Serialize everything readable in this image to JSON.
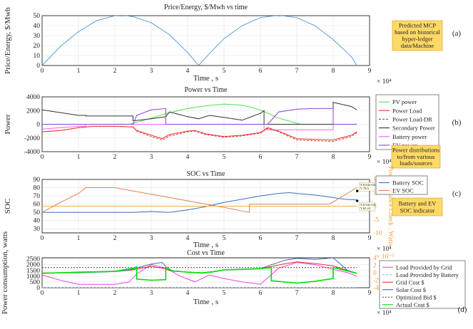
{
  "chart_data": [
    {
      "type": "line",
      "id": "a",
      "title": "Price/Energy, $/Mwh vs time",
      "xlabel": "Time , s",
      "ylabel": "Price/Energy, $/Mwh",
      "x_exponent": "× 10⁴",
      "xlim": [
        0,
        9
      ],
      "ylim": [
        0,
        50
      ],
      "xticks": [
        "0",
        "1",
        "2",
        "3",
        "4",
        "5",
        "6",
        "7",
        "8",
        "9"
      ],
      "yticks": [
        "0",
        "10",
        "20",
        "30",
        "40",
        "50"
      ],
      "grid": true,
      "series": [
        {
          "color": "#5b9bd5",
          "x": [
            0,
            0.5,
            1,
            1.5,
            2,
            2.2,
            2.5,
            3,
            3.5,
            4,
            4.3,
            4.6,
            5,
            5.5,
            6,
            6.5,
            7,
            7.5,
            8,
            8.5,
            8.65
          ],
          "values": [
            0,
            19,
            34,
            45,
            50,
            50.5,
            49,
            43,
            31,
            13,
            0,
            12,
            27,
            40,
            48,
            50.5,
            48,
            40,
            26,
            9,
            0
          ]
        }
      ],
      "annotation": {
        "text": [
          "Predicted MCP",
          "based on historical",
          "hyper-ledger",
          "data/Machine"
        ],
        "label": "(a)"
      }
    },
    {
      "type": "line",
      "id": "b",
      "title": "Power vs Time",
      "xlabel": "",
      "ylabel": "Power",
      "x_exponent": "× 10⁴",
      "xlim": [
        0,
        9
      ],
      "ylim": [
        -4000,
        4000
      ],
      "xticks": [
        "0",
        "1",
        "2",
        "3",
        "4",
        "5",
        "6",
        "7",
        "8",
        "9"
      ],
      "yticks": [
        "4000",
        "2000",
        "0",
        "-2000",
        "-4000"
      ],
      "grid": true,
      "legend": "right",
      "series": [
        {
          "name": "PV power",
          "color": "#55dd55",
          "dash": "",
          "x": [
            2.4,
            3,
            3.5,
            4,
            4.5,
            5,
            5.5,
            6,
            6.5,
            7.1
          ],
          "values": [
            0,
            900,
            1700,
            2300,
            2700,
            2950,
            2800,
            2100,
            900,
            0
          ]
        },
        {
          "name": "Power Load",
          "color": "#e8332b",
          "dash": "",
          "x": [
            0,
            0.5,
            1,
            1.4,
            2,
            2.5,
            2.6,
            3,
            3.3,
            3.5,
            4,
            4.2,
            4.5,
            5,
            5.5,
            6,
            6.2,
            6.5,
            7,
            7.5,
            8,
            8.5,
            8.65
          ],
          "values": [
            -1100,
            -900,
            -500,
            -300,
            -300,
            -400,
            -900,
            -1600,
            -2100,
            -1500,
            -1000,
            -900,
            -1400,
            -1800,
            -1600,
            -1200,
            -500,
            -1000,
            -2100,
            -2200,
            -2300,
            -1600,
            -1100
          ]
        },
        {
          "name": "Power Load-DR",
          "color": "#e8332b",
          "dash": "3,2",
          "x": [
            0,
            0.5,
            1,
            1.4,
            2,
            2.5,
            2.6,
            3,
            3.3,
            3.5,
            4,
            4.2,
            4.5,
            5,
            5.5,
            6,
            6.2,
            6.5,
            7,
            7.5,
            8,
            8.5,
            8.65
          ],
          "values": [
            -1100,
            -900,
            -500,
            -300,
            -300,
            -400,
            -1000,
            -1800,
            -2300,
            -1700,
            -1100,
            -1000,
            -1500,
            -1900,
            -1700,
            -1300,
            -600,
            -1100,
            -2300,
            -2400,
            -2500,
            -1800,
            -1200
          ]
        },
        {
          "name": "Secondary Power",
          "color": "#333333",
          "dash": "",
          "x": [
            0,
            0.5,
            1,
            1.2,
            1.2,
            2.5,
            2.5,
            3,
            3.4,
            3.5,
            4,
            4.3,
            4.6,
            5,
            5.5,
            6,
            6.1,
            6.1,
            6.5,
            7,
            7.5,
            8,
            8,
            8.5,
            8.65
          ],
          "values": [
            2100,
            1700,
            1300,
            1300,
            1200,
            1200,
            500,
            800,
            1100,
            1800,
            1100,
            800,
            1300,
            1000,
            600,
            1600,
            2000,
            0,
            0,
            0,
            0,
            0,
            3200,
            2600,
            2100
          ]
        },
        {
          "name": "Battery power",
          "color": "#ee66ee",
          "dash": "",
          "x": [
            0,
            0.5,
            1,
            1.2,
            1.2,
            6.1,
            6.1,
            8,
            8,
            8.65
          ],
          "values": [
            -700,
            -500,
            -300,
            -300,
            0,
            0,
            -800,
            -800,
            0,
            0
          ]
        },
        {
          "name": "EV power",
          "color": "#8844cc",
          "dash": "",
          "x": [
            0,
            2.5,
            2.6,
            3,
            3.4,
            3.4,
            6.2,
            6.5,
            7,
            7.5,
            8,
            8,
            8.65
          ],
          "values": [
            0,
            0,
            1300,
            2100,
            2300,
            0,
            0,
            1800,
            2200,
            2300,
            2300,
            0,
            0
          ]
        }
      ],
      "annotation": {
        "text": [
          "Power distributions",
          "to/from various",
          "loads/sources"
        ],
        "label": "(b)"
      }
    },
    {
      "type": "line",
      "id": "c",
      "title": "SOC vs Time",
      "xlabel": "Time , s",
      "ylabel": "SOC",
      "y2label": "Power Balance Check , Watts",
      "x_exponent": "× 10⁴",
      "xlim": [
        0,
        9
      ],
      "ylim": [
        25,
        90
      ],
      "y2lim": [
        -10,
        10
      ],
      "xticks": [
        "0",
        "1",
        "2",
        "3",
        "4",
        "5",
        "6",
        "7",
        "8",
        "9"
      ],
      "yticks": [
        "90",
        "80",
        "70",
        "60",
        "50",
        "40",
        "30"
      ],
      "y2ticks": [
        "10",
        "5",
        "0",
        "-5",
        "-10"
      ],
      "grid": true,
      "legend": "right",
      "series": [
        {
          "name": "Battery SOC",
          "color": "#3b6fb6",
          "x": [
            0,
            0.5,
            1,
            1.5,
            2,
            2.5,
            3,
            3.5,
            4,
            4.5,
            5,
            5.5,
            6,
            6.5,
            6.8,
            7,
            7.5,
            8,
            8.3,
            8.65
          ],
          "values": [
            50,
            50,
            50,
            50,
            50,
            50,
            51,
            50,
            53,
            57,
            62,
            66,
            70,
            73,
            74,
            73,
            71,
            68,
            66,
            65
          ]
        },
        {
          "name": "EV SOC",
          "color": "#e08050",
          "x": [
            0,
            0.5,
            1,
            1.2,
            2,
            2.5,
            3,
            3.5,
            4,
            4.5,
            5,
            5.7,
            5.7,
            6,
            7,
            7.9,
            8.65
          ],
          "values": [
            50,
            62,
            73,
            80,
            80,
            76,
            72,
            68,
            64,
            60,
            56,
            50,
            60,
            60,
            60,
            60,
            80
          ]
        },
        {
          "name": "",
          "color": "#f0b040",
          "axis": "right",
          "x": [
            0,
            8.65
          ],
          "values": [
            0,
            0
          ]
        }
      ],
      "datatips": [
        {
          "x": 8.7,
          "y": 76,
          "lines": [
            "X 8.64e+04",
            "Y 79.9"
          ]
        },
        {
          "x": 8.7,
          "y": 64,
          "lines": [
            "X 8.64e+04",
            "Y 65.24"
          ]
        }
      ],
      "annotation": {
        "text": [
          "Battery and EV",
          "SOC indicator"
        ],
        "label": "(c)"
      }
    },
    {
      "type": "line",
      "id": "d",
      "title": "Cost vs Time",
      "xlabel": "Time , s",
      "ylabel": "Power consumption,  watts",
      "y2label": "Cost $",
      "x_exponent": "× 10⁴",
      "y2_exponent": "× 10⁻³",
      "xlim": [
        0,
        9
      ],
      "ylim": [
        0,
        2600
      ],
      "y2lim": [
        -4,
        4
      ],
      "xticks": [
        "0",
        "1",
        "2",
        "3",
        "4",
        "5",
        "6",
        "7",
        "8",
        "9"
      ],
      "yticks": [
        "2500",
        "2000",
        "1500",
        "1000",
        "500",
        "0"
      ],
      "y2ticks": [
        "4",
        "2",
        "0",
        "-2",
        "-4"
      ],
      "grid": true,
      "legend": "right",
      "series": [
        {
          "name": "Load Provided by Grid",
          "color": "#ee44ee",
          "dash": "",
          "x": [
            0,
            0.5,
            1,
            1.5,
            2,
            2.4,
            2.6,
            3,
            3.4,
            3.8,
            4.2,
            4.6,
            5,
            5.5,
            6,
            6.5,
            7,
            7.5,
            8,
            8.4,
            8.65
          ],
          "values": [
            1100,
            650,
            300,
            300,
            300,
            500,
            1200,
            2000,
            1700,
            1000,
            500,
            1100,
            800,
            500,
            300,
            1700,
            2200,
            2000,
            1600,
            1300,
            1000
          ]
        },
        {
          "name": "Load Provided by Battery",
          "color": "#7fbfff",
          "dash": "3,2",
          "x": [
            0,
            8.65
          ],
          "values": [
            0,
            0
          ]
        },
        {
          "name": "Grid Cost $",
          "color": "#e8332b",
          "dash": "",
          "x": [
            0,
            0.5,
            1,
            1.5,
            2,
            2.5,
            2.8,
            3,
            3.3,
            3.5,
            4,
            4.4,
            4.7,
            5,
            5.5,
            6,
            6.3,
            6.7,
            7,
            7.5,
            8,
            8.4,
            8.65
          ],
          "values": [
            1280,
            1300,
            1350,
            1380,
            1400,
            1550,
            1750,
            1850,
            1700,
            1500,
            1350,
            1300,
            1400,
            1550,
            1600,
            1650,
            1850,
            2100,
            2250,
            2100,
            1900,
            1500,
            1250
          ]
        },
        {
          "name": "Solar Cost $",
          "color": "#3b6fb6",
          "dash": "",
          "x": [
            0,
            0.5,
            1,
            1.5,
            2,
            2.4,
            2.7,
            3,
            3.3,
            3.5,
            4,
            4.4,
            4.7,
            5,
            5.5,
            6,
            6.3,
            6.7,
            7,
            7.5,
            8,
            8.4,
            8.65
          ],
          "values": [
            1250,
            1280,
            1300,
            1350,
            1400,
            1550,
            1800,
            2050,
            2200,
            1500,
            1350,
            1300,
            1400,
            1550,
            1600,
            1650,
            2000,
            2400,
            2550,
            2450,
            2600,
            1500,
            1250
          ]
        },
        {
          "name": "Optimized Bid $",
          "color": "#444444",
          "dash": "2,2",
          "x": [
            0,
            8.65
          ],
          "values": [
            1750,
            1750
          ]
        },
        {
          "name": "Actual Cost $",
          "color": "#00e000",
          "dash": "",
          "x": [
            0,
            0.5,
            1,
            1.5,
            2,
            2.5,
            2.6,
            2.6,
            3,
            3.4,
            3.4,
            3.6,
            4,
            4.4,
            4.7,
            5,
            5.5,
            6,
            6.3,
            6.3,
            7,
            7.5,
            8,
            8,
            8.4,
            8.65
          ],
          "values": [
            1250,
            1300,
            1350,
            1380,
            1420,
            1700,
            1800,
            750,
            650,
            700,
            1750,
            1450,
            1350,
            1280,
            1380,
            1550,
            1600,
            1650,
            1750,
            600,
            400,
            550,
            800,
            1750,
            1450,
            1250
          ]
        }
      ],
      "annotation": {
        "text": [],
        "label": "(d)"
      }
    }
  ]
}
